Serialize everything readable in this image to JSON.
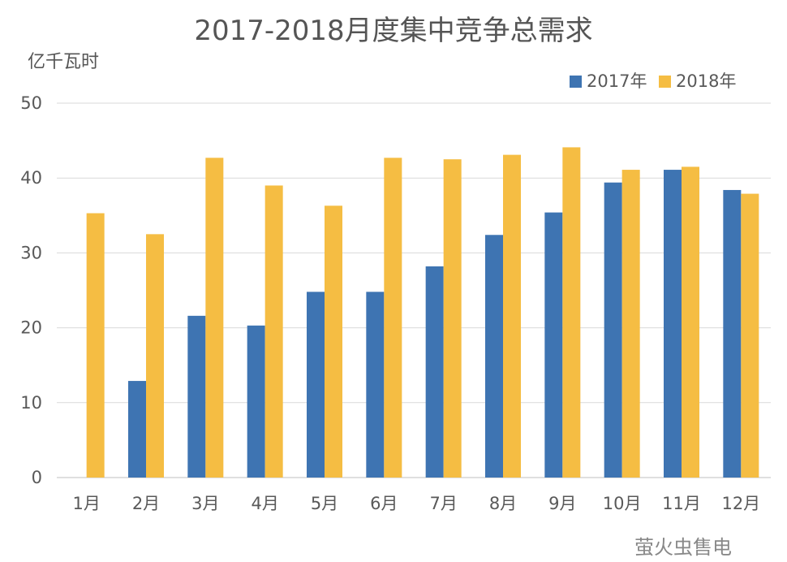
{
  "chart_data": {
    "type": "bar",
    "title": "2017-2018月度集中竞争总需求",
    "ylabel": "亿千瓦时",
    "xlabel": "",
    "ylim": [
      0,
      50
    ],
    "yticks": [
      0,
      10,
      20,
      30,
      40,
      50
    ],
    "grid": true,
    "legend_position": "top-right",
    "categories": [
      "1月",
      "2月",
      "3月",
      "4月",
      "5月",
      "6月",
      "7月",
      "8月",
      "9月",
      "10月",
      "11月",
      "12月"
    ],
    "series": [
      {
        "name": "2017年",
        "color": "#3E74B2",
        "values": [
          0,
          12.9,
          21.6,
          20.3,
          24.8,
          24.8,
          28.2,
          32.4,
          35.4,
          39.4,
          41.1,
          38.4
        ]
      },
      {
        "name": "2018年",
        "color": "#F5BD43",
        "values": [
          35.3,
          32.5,
          42.7,
          39.0,
          36.3,
          42.7,
          42.5,
          43.1,
          44.1,
          41.1,
          41.5,
          37.9
        ]
      }
    ]
  },
  "watermark": "萤火虫售电"
}
